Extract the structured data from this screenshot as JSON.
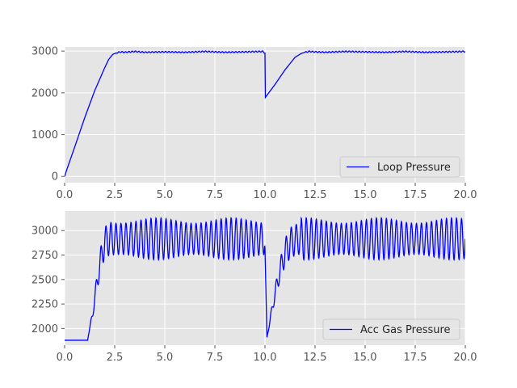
{
  "chart_data": [
    {
      "type": "line",
      "title": "",
      "xlabel": "",
      "ylabel": "",
      "xlim": [
        0,
        20
      ],
      "ylim": [
        -150,
        3100
      ],
      "xticks": [
        0.0,
        2.5,
        5.0,
        7.5,
        10.0,
        12.5,
        15.0,
        17.5,
        20.0
      ],
      "xtick_labels": [
        "0.0",
        "2.5",
        "5.0",
        "7.5",
        "10.0",
        "12.5",
        "15.0",
        "17.5",
        "20.0"
      ],
      "yticks": [
        0,
        1000,
        2000,
        3000
      ],
      "ytick_labels": [
        "0",
        "1000",
        "2000",
        "3000"
      ],
      "grid": true,
      "legend_position": "lower right",
      "series": [
        {
          "name": "Loop Pressure",
          "color": "#0000ff",
          "x": [
            0.0,
            0.1,
            0.5,
            1.0,
            1.5,
            2.0,
            2.2,
            2.4,
            2.6,
            2.8,
            3.0,
            3.5,
            4.0,
            5.0,
            6.0,
            7.0,
            8.0,
            9.0,
            9.9,
            10.0,
            10.02,
            10.5,
            11.0,
            11.5,
            11.8,
            12.0,
            12.2,
            12.5,
            13.0,
            14.0,
            15.0,
            16.0,
            17.0,
            18.0,
            19.0,
            20.0
          ],
          "y": [
            0,
            150,
            700,
            1400,
            2050,
            2600,
            2800,
            2920,
            2960,
            2980,
            2970,
            2990,
            2970,
            2980,
            2970,
            2990,
            2970,
            2980,
            2990,
            2950,
            1890,
            2200,
            2550,
            2850,
            2940,
            2970,
            2990,
            2980,
            2970,
            2990,
            2980,
            2970,
            2990,
            2970,
            2980,
            2990
          ],
          "ripple_amplitude_after_plateau": 15
        }
      ]
    },
    {
      "type": "line",
      "title": "",
      "xlabel": "",
      "ylabel": "",
      "xlim": [
        0,
        20
      ],
      "ylim": [
        1830,
        3200
      ],
      "xticks": [
        0.0,
        2.5,
        5.0,
        7.5,
        10.0,
        12.5,
        15.0,
        17.5,
        20.0
      ],
      "xtick_labels": [
        "0.0",
        "2.5",
        "5.0",
        "7.5",
        "10.0",
        "12.5",
        "15.0",
        "17.5",
        "20.0"
      ],
      "yticks": [
        2000,
        2250,
        2500,
        2750,
        3000
      ],
      "ytick_labels": [
        "2000",
        "2250",
        "2500",
        "2750",
        "3000"
      ],
      "grid": true,
      "legend_position": "lower right",
      "series": [
        {
          "name": "Acc Gas Pressure",
          "color": "#0000ff",
          "x": [
            0.0,
            1.15,
            1.2,
            1.4,
            1.6,
            1.8,
            2.0,
            2.2,
            2.5,
            3.0,
            4.0,
            5.0,
            6.0,
            7.0,
            8.0,
            9.0,
            9.95,
            10.0,
            10.1,
            10.4,
            10.7,
            11.0,
            11.3,
            11.6,
            12.0,
            13.0,
            14.0,
            15.0,
            16.0,
            17.0,
            18.0,
            19.0,
            20.0
          ],
          "y": [
            1880,
            1880,
            1950,
            2150,
            2450,
            2700,
            2880,
            2920,
            2910,
            2920,
            2920,
            2910,
            2920,
            2910,
            2920,
            2910,
            2920,
            2820,
            1910,
            2250,
            2550,
            2780,
            2880,
            2910,
            2920,
            2910,
            2920,
            2910,
            2920,
            2910,
            2920,
            2910,
            2920
          ],
          "oscillation_min": 2720,
          "oscillation_max": 3110,
          "oscillation_period": 0.25
        }
      ]
    }
  ]
}
